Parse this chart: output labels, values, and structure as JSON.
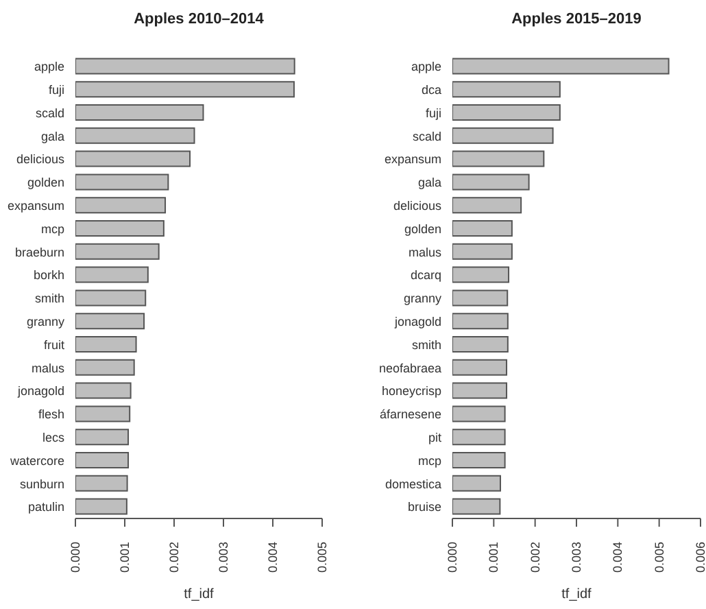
{
  "chart_data": [
    {
      "type": "bar",
      "orientation": "horizontal",
      "title": "Apples 2010–2014",
      "xlabel": "tf_idf",
      "color": "#bebebe",
      "categories": [
        "apple",
        "fuji",
        "scald",
        "gala",
        "delicious",
        "golden",
        "expansum",
        "mcp",
        "braeburn",
        "borkh",
        "smith",
        "granny",
        "fruit",
        "malus",
        "jonagold",
        "flesh",
        "lecs",
        "watercore",
        "sunburn",
        "patulin"
      ],
      "values": [
        0.00444,
        0.00443,
        0.00259,
        0.00241,
        0.00232,
        0.00188,
        0.00182,
        0.00179,
        0.00169,
        0.00147,
        0.00142,
        0.00139,
        0.00123,
        0.00119,
        0.00112,
        0.0011,
        0.00107,
        0.00107,
        0.00105,
        0.00104
      ],
      "xlim": [
        0,
        0.005
      ],
      "xticks": [
        {
          "value": 0,
          "label": "0.000"
        },
        {
          "value": 0.001,
          "label": "0.001"
        },
        {
          "value": 0.002,
          "label": "0.002"
        },
        {
          "value": 0.003,
          "label": "0.003"
        },
        {
          "value": 0.004,
          "label": "0.004"
        },
        {
          "value": 0.005,
          "label": "0.005"
        }
      ]
    },
    {
      "type": "bar",
      "orientation": "horizontal",
      "title": "Apples 2015–2019",
      "xlabel": "tf_idf",
      "color": "#bebebe",
      "categories": [
        "apple",
        "dca",
        "fuji",
        "scald",
        "expansum",
        "gala",
        "delicious",
        "golden",
        "malus",
        "dcarq",
        "granny",
        "jonagold",
        "smith",
        "neofabraea",
        "honeycrisp",
        "áfarnesene",
        "pit",
        "mcp",
        "domestica",
        "bruise"
      ],
      "values": [
        0.00523,
        0.0026,
        0.0026,
        0.00243,
        0.00221,
        0.00185,
        0.00166,
        0.00144,
        0.00144,
        0.00136,
        0.00133,
        0.00134,
        0.00134,
        0.00131,
        0.00131,
        0.00127,
        0.00127,
        0.00127,
        0.00116,
        0.00115
      ],
      "xlim": [
        0,
        0.006
      ],
      "xticks": [
        {
          "value": 0,
          "label": "0.000"
        },
        {
          "value": 0.001,
          "label": "0.001"
        },
        {
          "value": 0.002,
          "label": "0.002"
        },
        {
          "value": 0.003,
          "label": "0.003"
        },
        {
          "value": 0.004,
          "label": "0.004"
        },
        {
          "value": 0.005,
          "label": "0.005"
        },
        {
          "value": 0.006,
          "label": "0.006"
        }
      ]
    }
  ]
}
